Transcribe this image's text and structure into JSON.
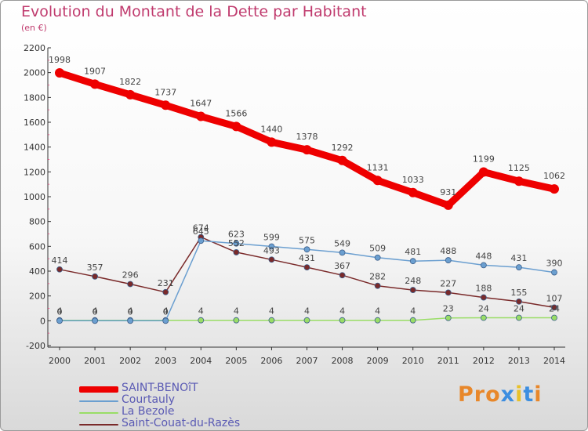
{
  "title": "Evolution du Montant de la Dette par Habitant",
  "subtitle": "(en €)",
  "logo": {
    "parts": [
      "Pr",
      "o",
      "x",
      "i",
      "t",
      "i"
    ],
    "colors": [
      "#e8872a",
      "#e8872a",
      "#3c8ee0",
      "#e8c12a",
      "#3c8ee0",
      "#e8872a"
    ]
  },
  "chart_data": {
    "type": "line",
    "x": [
      "2000",
      "2001",
      "2002",
      "2003",
      "2004",
      "2005",
      "2006",
      "2007",
      "2008",
      "2009",
      "2010",
      "2011",
      "2012",
      "2013",
      "2014"
    ],
    "ylim": [
      -200,
      2200
    ],
    "yticks": [
      -200,
      0,
      200,
      400,
      600,
      800,
      1000,
      1200,
      1400,
      1600,
      1800,
      2000,
      2200
    ],
    "grid": false,
    "legend_position": "bottom-left",
    "series": [
      {
        "name": "SAINT-BENOîT",
        "color": "#ee0000",
        "width": 9,
        "marker_r": 6,
        "values": [
          1998,
          1907,
          1822,
          1737,
          1647,
          1566,
          1440,
          1378,
          1292,
          1131,
          1033,
          931,
          1199,
          1125,
          1062
        ]
      },
      {
        "name": "Courtauly",
        "color": "#6b9fd0",
        "width": 1.5,
        "marker_r": 3.5,
        "values": [
          0,
          0,
          0,
          0,
          645,
          623,
          599,
          575,
          549,
          509,
          481,
          488,
          448,
          431,
          390
        ]
      },
      {
        "name": "La Bezole",
        "color": "#99dd66",
        "width": 1.5,
        "marker_r": 3.5,
        "values": [
          4,
          4,
          4,
          4,
          4,
          4,
          4,
          4,
          4,
          4,
          4,
          23,
          24,
          24,
          24
        ]
      },
      {
        "name": "Saint-Couat-du-Razès",
        "color": "#7a2a2a",
        "width": 1.5,
        "marker_r": 3.5,
        "values": [
          414,
          357,
          296,
          231,
          674,
          552,
          493,
          431,
          367,
          282,
          248,
          227,
          188,
          155,
          107
        ]
      }
    ],
    "value_labels": [
      {
        "series": 0,
        "labels": [
          "1998",
          "1907",
          "1822",
          "1737",
          "1647",
          "1566",
          "1440",
          "1378",
          "1292",
          "1131",
          "1033",
          "931",
          "1199",
          "1125",
          "1062"
        ]
      },
      {
        "series": 1,
        "labels": [
          "0",
          "0",
          "0",
          "0",
          "645",
          "623",
          "599",
          "575",
          "549",
          "509",
          "481",
          "488",
          "448",
          "431",
          "390"
        ]
      },
      {
        "series": 2,
        "labels": [
          "4",
          "4",
          "4",
          "4",
          "4",
          "4",
          "4",
          "4",
          "4",
          "4",
          "4",
          "23",
          "24",
          "24",
          "24"
        ]
      },
      {
        "series": 3,
        "labels": [
          "414",
          "357",
          "296",
          "231",
          "674",
          "552",
          "493",
          "431",
          "367",
          "282",
          "248",
          "227",
          "188",
          "155",
          "107"
        ]
      }
    ]
  }
}
